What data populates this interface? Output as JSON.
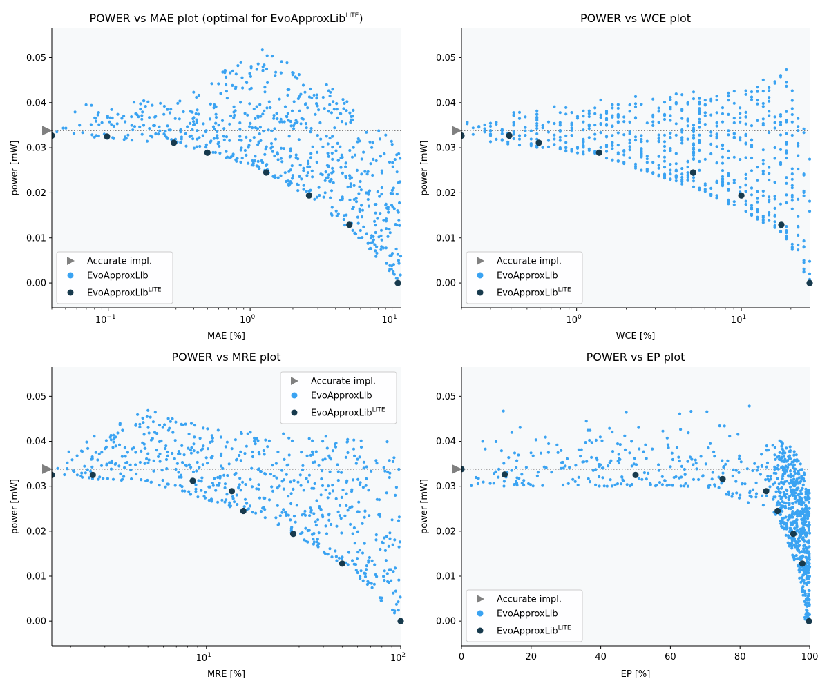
{
  "colors": {
    "evo": "#3aa3f2",
    "lite": "#173a4d",
    "accurate": "#808080",
    "plot_bg": "#f7f9fa"
  },
  "legend_labels": {
    "accurate": "Accurate impl.",
    "evo": "EvoApproxLib",
    "lite_base": "EvoApproxLib",
    "lite_sup": "LITE"
  },
  "chart_data": [
    {
      "type": "scatter",
      "title": "POWER vs MAE plot (optimal for EvoApproxLib",
      "title_sup": "LITE",
      "title_tail": ")",
      "xlabel": "MAE [%]",
      "ylabel": "power [mW]",
      "xscale": "log",
      "xlim": [
        0.04,
        11.5
      ],
      "ylim": [
        -0.0055,
        0.0565
      ],
      "xticks": [
        {
          "v": 0.1,
          "base": "10",
          "exp": "−1"
        },
        {
          "v": 1,
          "base": "10",
          "exp": "0"
        },
        {
          "v": 10,
          "base": "10",
          "exp": "1"
        }
      ],
      "yticks": [
        "0.00",
        "0.01",
        "0.02",
        "0.03",
        "0.04",
        "0.05"
      ],
      "legend": "lower-left",
      "accurate": {
        "x": 0.04,
        "y": 0.0338
      },
      "lite": [
        [
          0.04,
          0.0327
        ],
        [
          0.098,
          0.0325
        ],
        [
          0.29,
          0.0311
        ],
        [
          0.5,
          0.0289
        ],
        [
          1.3,
          0.0245
        ],
        [
          2.6,
          0.0194
        ],
        [
          5.0,
          0.0129
        ],
        [
          11.0,
          0.0
        ]
      ],
      "evo_gen": {
        "n": 700,
        "seed": 11,
        "xmode": "log",
        "xmin": 0.04,
        "xmax": 11.5,
        "density_pow": 0.55,
        "top": [
          [
            0.04,
            0.039
          ],
          [
            0.3,
            0.041
          ],
          [
            1.2,
            0.052
          ],
          [
            4.0,
            0.043
          ],
          [
            11.5,
            0.03
          ]
        ],
        "bottom": [
          [
            0.04,
            0.033
          ],
          [
            0.29,
            0.031
          ],
          [
            0.5,
            0.029
          ],
          [
            1.3,
            0.0245
          ],
          [
            2.6,
            0.019
          ],
          [
            5.0,
            0.012
          ],
          [
            11.5,
            0.0
          ]
        ]
      }
    },
    {
      "type": "scatter",
      "title": "POWER vs WCE plot",
      "xlabel": "WCE [%]",
      "ylabel": "power [mW]",
      "xscale": "log",
      "xlim": [
        0.2,
        26
      ],
      "ylim": [
        -0.0055,
        0.0565
      ],
      "xticks": [
        {
          "v": 1,
          "base": "10",
          "exp": "0"
        },
        {
          "v": 10,
          "base": "10",
          "exp": "1"
        }
      ],
      "yticks": [
        "0.00",
        "0.01",
        "0.02",
        "0.03",
        "0.04",
        "0.05"
      ],
      "legend": "lower-left",
      "accurate": {
        "x": 0.2,
        "y": 0.0338
      },
      "lite": [
        [
          0.2,
          0.0327
        ],
        [
          0.39,
          0.0327
        ],
        [
          0.59,
          0.0311
        ],
        [
          1.37,
          0.0289
        ],
        [
          5.1,
          0.0245
        ],
        [
          10.0,
          0.0194
        ],
        [
          17.5,
          0.0129
        ],
        [
          26.0,
          0.0
        ]
      ],
      "evo_gen": {
        "n": 700,
        "seed": 23,
        "xmode": "logbands",
        "xmin": 0.2,
        "xmax": 26,
        "density_pow": 0.6,
        "top": [
          [
            0.2,
            0.036
          ],
          [
            1.0,
            0.04
          ],
          [
            3.0,
            0.042
          ],
          [
            10.0,
            0.043
          ],
          [
            18.0,
            0.05
          ],
          [
            26.0,
            0.03
          ]
        ],
        "bottom": [
          [
            0.2,
            0.032
          ],
          [
            0.6,
            0.03
          ],
          [
            1.4,
            0.028
          ],
          [
            3.0,
            0.024
          ],
          [
            6.0,
            0.02
          ],
          [
            10.0,
            0.016
          ],
          [
            18.0,
            0.011
          ],
          [
            26.0,
            0.0
          ]
        ]
      }
    },
    {
      "type": "scatter",
      "title": "POWER vs MRE plot",
      "xlabel": "MRE [%]",
      "ylabel": "power [mW]",
      "xscale": "log",
      "xlim": [
        1.6,
        100
      ],
      "ylim": [
        -0.0055,
        0.0565
      ],
      "xticks": [
        {
          "v": 10,
          "base": "10",
          "exp": "1"
        },
        {
          "v": 100,
          "base": "10",
          "exp": "2"
        }
      ],
      "yticks": [
        "0.00",
        "0.01",
        "0.02",
        "0.03",
        "0.04",
        "0.05"
      ],
      "legend": "upper-right",
      "accurate": {
        "x": 1.6,
        "y": 0.0338
      },
      "lite": [
        [
          1.6,
          0.0325
        ],
        [
          2.6,
          0.0325
        ],
        [
          8.5,
          0.0312
        ],
        [
          13.5,
          0.0289
        ],
        [
          15.5,
          0.0245
        ],
        [
          28.0,
          0.0194
        ],
        [
          50.0,
          0.0128
        ],
        [
          100.0,
          0.0
        ]
      ],
      "evo_gen": {
        "n": 650,
        "seed": 37,
        "xmode": "log",
        "xmin": 1.6,
        "xmax": 100,
        "density_pow": 0.7,
        "top": [
          [
            1.6,
            0.038
          ],
          [
            5.0,
            0.047
          ],
          [
            10.0,
            0.043
          ],
          [
            30.0,
            0.042
          ],
          [
            100.0,
            0.04
          ]
        ],
        "bottom": [
          [
            1.6,
            0.032
          ],
          [
            5.0,
            0.031
          ],
          [
            10.0,
            0.027
          ],
          [
            20.0,
            0.023
          ],
          [
            35.0,
            0.017
          ],
          [
            60.0,
            0.01
          ],
          [
            100.0,
            0.0
          ]
        ]
      }
    },
    {
      "type": "scatter",
      "title": "POWER vs EP plot",
      "xlabel": "EP [%]",
      "ylabel": "power [mW]",
      "xscale": "linear",
      "xlim": [
        0,
        100
      ],
      "ylim": [
        -0.0055,
        0.0565
      ],
      "xticks": [
        {
          "v": 0,
          "label": "0"
        },
        {
          "v": 20,
          "label": "20"
        },
        {
          "v": 40,
          "label": "40"
        },
        {
          "v": 60,
          "label": "60"
        },
        {
          "v": 80,
          "label": "80"
        },
        {
          "v": 100,
          "label": "100"
        }
      ],
      "yticks": [
        "0.00",
        "0.01",
        "0.02",
        "0.03",
        "0.04",
        "0.05"
      ],
      "legend": "lower-left",
      "accurate": {
        "x": 0,
        "y": 0.0338
      },
      "lite": [
        [
          0,
          0.0338
        ],
        [
          12.4,
          0.0326
        ],
        [
          50.0,
          0.0325
        ],
        [
          75.0,
          0.0316
        ],
        [
          87.5,
          0.0289
        ],
        [
          90.8,
          0.0245
        ],
        [
          95.3,
          0.0194
        ],
        [
          97.9,
          0.0128
        ],
        [
          99.8,
          0.0
        ]
      ],
      "evo_gen": {
        "n": 900,
        "seed": 53,
        "xmode": "ep",
        "xmin": 0,
        "xmax": 100
      }
    }
  ]
}
